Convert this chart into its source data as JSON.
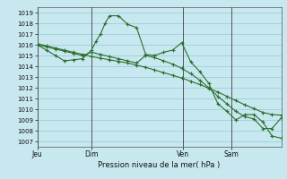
{
  "background_color": "#c8e8f0",
  "grid_color": "#90c8d8",
  "line_color": "#2d6e2d",
  "xlabel": "Pression niveau de la mer( hPa )",
  "ylim": [
    1006.5,
    1019.5
  ],
  "yticks": [
    1007,
    1008,
    1009,
    1010,
    1011,
    1012,
    1013,
    1014,
    1015,
    1016,
    1017,
    1018,
    1019
  ],
  "day_labels": [
    "Jeu",
    "Dim",
    "Ven",
    "Sam"
  ],
  "day_positions": [
    0.0,
    0.222,
    0.597,
    0.795
  ],
  "xlim": [
    0.0,
    1.0
  ],
  "s1_x": [
    0.0,
    0.037,
    0.074,
    0.111,
    0.148,
    0.185,
    0.222,
    0.259,
    0.296,
    0.333,
    0.37,
    0.407,
    0.444,
    0.481,
    0.518,
    0.555,
    0.592,
    0.629,
    0.666,
    0.703,
    0.74,
    0.777,
    0.814,
    0.851,
    0.888,
    0.925,
    0.962,
    1.0
  ],
  "s1_y": [
    1016.1,
    1015.9,
    1015.7,
    1015.5,
    1015.3,
    1015.1,
    1014.9,
    1014.75,
    1014.6,
    1014.45,
    1014.3,
    1014.1,
    1013.9,
    1013.65,
    1013.4,
    1013.15,
    1012.9,
    1012.6,
    1012.3,
    1011.95,
    1011.6,
    1011.2,
    1010.8,
    1010.4,
    1010.05,
    1009.7,
    1009.5,
    1009.45
  ],
  "s2_x": [
    0.0,
    0.037,
    0.074,
    0.111,
    0.148,
    0.185,
    0.222,
    0.24,
    0.259,
    0.278,
    0.296,
    0.333,
    0.37,
    0.407,
    0.444,
    0.481,
    0.518,
    0.555,
    0.592,
    0.629,
    0.666,
    0.703,
    0.74,
    0.777,
    0.814,
    0.851,
    0.888,
    0.925,
    0.962,
    1.0
  ],
  "s2_y": [
    1016.0,
    1015.5,
    1015.0,
    1014.5,
    1014.6,
    1014.7,
    1015.5,
    1016.3,
    1017.0,
    1018.0,
    1018.7,
    1018.7,
    1017.9,
    1017.6,
    1015.1,
    1015.0,
    1015.3,
    1015.5,
    1016.2,
    1014.4,
    1013.5,
    1012.4,
    1010.5,
    1009.8,
    1009.0,
    1009.5,
    1009.5,
    1008.8,
    1007.5,
    1007.3
  ],
  "s3_x": [
    0.0,
    0.037,
    0.074,
    0.111,
    0.148,
    0.185,
    0.222,
    0.259,
    0.296,
    0.333,
    0.37,
    0.407,
    0.444,
    0.481,
    0.518,
    0.555,
    0.592,
    0.629,
    0.666,
    0.703,
    0.74,
    0.777,
    0.814,
    0.851,
    0.888,
    0.925,
    0.962,
    1.0
  ],
  "s3_y": [
    1016.0,
    1015.8,
    1015.6,
    1015.4,
    1015.2,
    1015.0,
    1015.3,
    1015.1,
    1014.9,
    1014.7,
    1014.5,
    1014.3,
    1015.0,
    1014.8,
    1014.5,
    1014.2,
    1013.8,
    1013.3,
    1012.7,
    1012.0,
    1011.2,
    1010.5,
    1009.8,
    1009.3,
    1009.1,
    1008.2,
    1008.2,
    1009.2
  ]
}
